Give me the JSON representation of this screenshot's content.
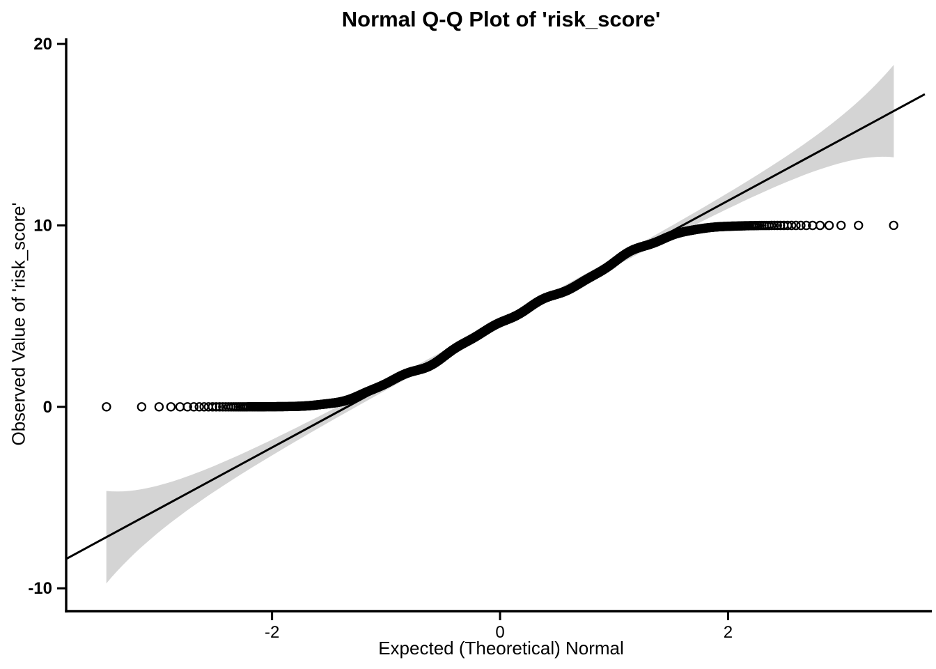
{
  "chart_data": {
    "type": "scatter",
    "subtype": "normal-qq-plot",
    "title": "Normal Q-Q Plot of 'risk_score'",
    "xlabel": "Expected (Theoretical) Normal",
    "ylabel": "Observed Value of 'risk_score'",
    "x_ticks": [
      -2,
      0,
      2
    ],
    "y_ticks": [
      -10,
      0,
      10,
      20
    ],
    "xlim": [
      -3.806,
      3.824
    ],
    "ylim": [
      -11.26,
      20.31
    ],
    "grid": false,
    "legend": null,
    "marker": "open-circle",
    "marker_radius_px": 5.6,
    "marker_stroke_px": 2.2,
    "colors": {
      "points": "#000000",
      "fit_line": "#000000",
      "confidence_band": "#d4d4d4",
      "axis": "#000000",
      "text": "#000000",
      "background": "#ffffff"
    },
    "fit_line": {
      "intercept": 4.56,
      "slope": 3.4,
      "z_start": -3.806,
      "z_end": 3.726
    },
    "confidence_band": {
      "n": 1800,
      "sd": 3.4,
      "z_multiplier": 1.96,
      "z_min": -3.4538,
      "z_max": 3.4538,
      "half_width_at_center": 0.2,
      "half_width_at_ends": 2.53
    },
    "points_model": {
      "n": 1800,
      "mean": 4.56,
      "sd": 3.4,
      "clip_min": 0,
      "clip_max": 10,
      "smooth_k": 0.55,
      "wiggle": [
        [
          0.1,
          5.1,
          1.3
        ],
        [
          0.07,
          9.3,
          4.0
        ],
        [
          0.05,
          16.0,
          2.0
        ]
      ],
      "wiggle_damp_scale": 2.6
    },
    "observed_value_range": [
      0,
      10
    ],
    "expected_quantile_range": [
      -3.45,
      3.45
    ],
    "tick_label_style": {
      "y_bold": true,
      "x_bold": false,
      "font_size_px": 24
    }
  }
}
